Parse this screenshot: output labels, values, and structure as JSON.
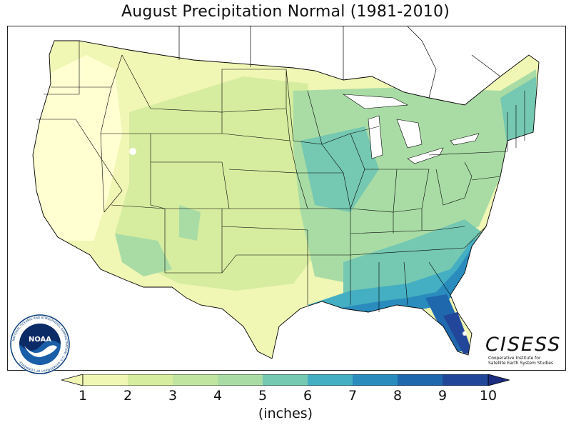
{
  "title": "August Precipitation Normal (1981-2010)",
  "map": {
    "variable": "precipitation",
    "region": "contiguous-united-states",
    "colors": {
      "water": "#ffffff",
      "border": "#000000",
      "b0_1": "#ffffd2",
      "b1_2": "#f0f6b4",
      "b2_3": "#d6ec9f",
      "b3_4": "#a9dca5",
      "b4_5": "#75c8b1",
      "b5_6": "#44aec2",
      "b6_7": "#2a8cbd",
      "b7_8": "#2068ad",
      "b8_9": "#22479a",
      "b9_10": "#1c2c80"
    }
  },
  "colorbar": {
    "ticks": [
      "1",
      "2",
      "3",
      "4",
      "5",
      "6",
      "7",
      "8",
      "9",
      "10"
    ],
    "units": "(inches)",
    "colors": [
      "#f0f6b4",
      "#d6ec9f",
      "#bfe5a0",
      "#a9dca5",
      "#75c8b1",
      "#44aec2",
      "#2a8cbd",
      "#2068ad",
      "#22479a",
      "#1c2c80"
    ]
  },
  "logos": {
    "noaa": {
      "name": "NOAA",
      "ring_text": "NATIONAL OCEANIC AND ATMOSPHERIC ADMINISTRATION",
      "bottom_text": "U.S. DEPARTMENT OF COMMERCE"
    },
    "cisess": {
      "name": "CISESS",
      "subtitle_line1": "Cooperative Institute for",
      "subtitle_line2": "Satellite Earth System Studies"
    }
  }
}
